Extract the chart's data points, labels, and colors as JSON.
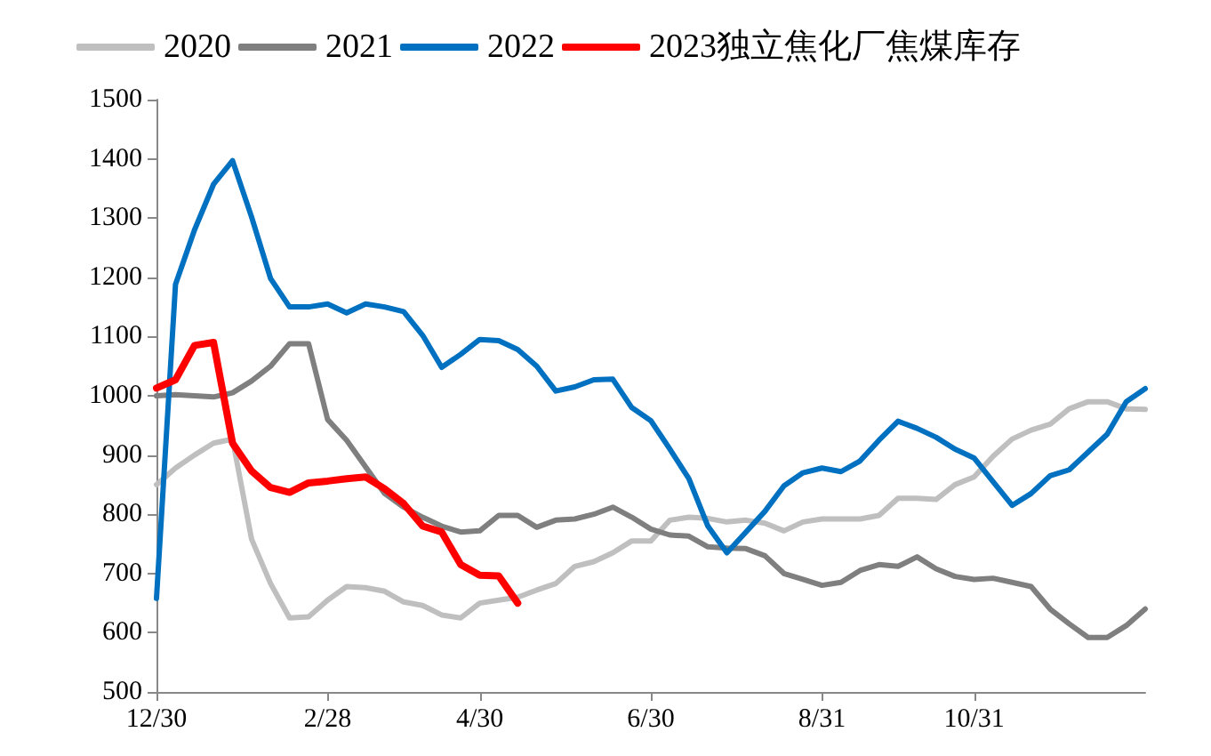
{
  "chart_data": {
    "type": "line",
    "categories": [
      "12/30",
      null,
      null,
      null,
      null,
      null,
      null,
      null,
      null,
      "2/28",
      null,
      null,
      null,
      null,
      null,
      null,
      null,
      "4/30",
      null,
      null,
      null,
      null,
      null,
      null,
      null,
      null,
      "6/30",
      null,
      null,
      null,
      null,
      null,
      null,
      null,
      null,
      "8/31",
      null,
      null,
      null,
      null,
      null,
      null,
      null,
      "10/31",
      null,
      null,
      null,
      null,
      null,
      null,
      null,
      null,
      null
    ],
    "series": [
      {
        "name": "2020",
        "color": "#bfbfbf",
        "values": [
          850,
          878,
          900,
          920,
          927,
          758,
          683,
          625,
          627,
          655,
          678,
          676,
          670,
          652,
          646,
          630,
          625,
          650,
          655,
          660,
          672,
          683,
          712,
          720,
          735,
          755,
          755,
          790,
          795,
          793,
          787,
          790,
          785,
          772,
          787,
          792,
          792,
          792,
          798,
          827,
          827,
          825,
          850,
          863,
          898,
          927,
          942,
          952,
          978,
          990,
          990,
          978,
          977
        ]
      },
      {
        "name": "2021",
        "color": "#7f7f7f",
        "values": [
          1000,
          1002,
          1000,
          998,
          1005,
          1025,
          1050,
          1088,
          1088,
          960,
          925,
          880,
          835,
          812,
          795,
          780,
          770,
          772,
          798,
          798,
          778,
          790,
          792,
          800,
          812,
          795,
          775,
          765,
          763,
          745,
          743,
          742,
          730,
          700,
          690,
          680,
          685,
          705,
          715,
          712,
          728,
          708,
          695,
          690,
          692,
          685,
          678,
          640,
          615,
          592,
          592,
          612,
          640
        ]
      },
      {
        "name": "2022",
        "color": "#0070c0",
        "values": [
          658,
          1188,
          1280,
          1357,
          1397,
          1302,
          1198,
          1150,
          1150,
          1155,
          1140,
          1155,
          1150,
          1142,
          1102,
          1048,
          1070,
          1095,
          1093,
          1078,
          1050,
          1008,
          1015,
          1027,
          1028,
          980,
          958,
          910,
          860,
          780,
          735,
          770,
          805,
          848,
          870,
          878,
          872,
          890,
          925,
          957,
          945,
          930,
          910,
          895,
          855,
          815,
          835,
          865,
          875,
          905,
          935,
          990,
          1012
        ]
      },
      {
        "name": "2023独立焦化厂焦煤库存",
        "color": "#ff0000",
        "values": [
          1013,
          1027,
          1085,
          1090,
          920,
          873,
          845,
          837,
          853,
          856,
          860,
          863,
          843,
          818,
          780,
          770,
          715,
          697,
          696,
          650,
          null,
          null,
          null,
          null,
          null,
          null,
          null,
          null,
          null,
          null,
          null,
          null,
          null,
          null,
          null,
          null,
          null,
          null,
          null,
          null,
          null,
          null,
          null,
          null,
          null,
          null,
          null,
          null,
          null,
          null,
          null,
          null,
          null
        ]
      }
    ],
    "ylim": [
      500,
      1500
    ],
    "yticks": [
      500,
      600,
      700,
      800,
      900,
      1000,
      1100,
      1200,
      1300,
      1400,
      1500
    ],
    "grid": false,
    "legend": "top",
    "marker": "none",
    "line_style": "solid"
  }
}
